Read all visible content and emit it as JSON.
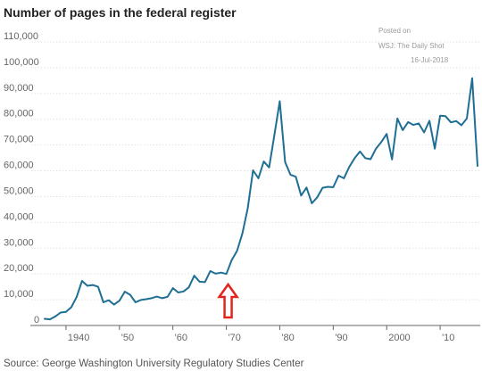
{
  "header": {
    "title": "Number of pages in the federal register"
  },
  "watermark": {
    "line1": "Posted on",
    "line2": "WSJ: The Daily Shot",
    "line3": "16-Jul-2018"
  },
  "footer": {
    "source": "Source: George Washington University Regulatory Studies Center"
  },
  "colors": {
    "line": "#1f6f94",
    "grid": "#e2e2e2",
    "axis": "#666666",
    "arrow": "#e3241b"
  },
  "annotation": {
    "type": "up-arrow",
    "x": 1970,
    "color": "#e3241b"
  },
  "chart_data": {
    "type": "line",
    "title": "Number of pages in the federal register",
    "xlabel": "",
    "ylabel": "",
    "x_tick_labels": [
      "1940",
      "'50",
      "'60",
      "'70",
      "'80",
      "'90",
      "2000",
      "'10"
    ],
    "x_ticks": [
      1940,
      1950,
      1960,
      1970,
      1980,
      1990,
      2000,
      2010
    ],
    "y_tick_labels": [
      "0",
      "10,000",
      "20,000",
      "30,000",
      "40,000",
      "50,000",
      "60,000",
      "70,000",
      "80,000",
      "90,000",
      "100,000",
      "110,000"
    ],
    "y_ticks": [
      0,
      10000,
      20000,
      30000,
      40000,
      50000,
      60000,
      70000,
      80000,
      90000,
      100000,
      110000
    ],
    "xlim": [
      1933.5,
      2017.5
    ],
    "ylim": [
      0,
      110000
    ],
    "grid": "horizontal",
    "series": [
      {
        "x": [
          1936,
          1937,
          1938,
          1939,
          1940,
          1941,
          1942,
          1943,
          1944,
          1945,
          1946,
          1947,
          1948,
          1949,
          1950,
          1951,
          1952,
          1953,
          1954,
          1955,
          1956,
          1957,
          1958,
          1959,
          1960,
          1961,
          1962,
          1963,
          1964,
          1965,
          1966,
          1967,
          1968,
          1969,
          1970,
          1971,
          1972,
          1973,
          1974,
          1975,
          1976,
          1977,
          1978,
          1979,
          1980,
          1981,
          1982,
          1983,
          1984,
          1985,
          1986,
          1987,
          1988,
          1989,
          1990,
          1991,
          1992,
          1993,
          1994,
          1995,
          1996,
          1997,
          1998,
          1999,
          2000,
          2001,
          2002,
          2003,
          2004,
          2005,
          2006,
          2007,
          2008,
          2009,
          2010,
          2011,
          2012,
          2013,
          2014,
          2015,
          2016,
          2017
        ],
        "values": [
          2600,
          2400,
          3500,
          5000,
          5300,
          7100,
          11100,
          17300,
          15400,
          15700,
          15000,
          9000,
          9800,
          8100,
          9600,
          13100,
          11900,
          9000,
          9900,
          10200,
          10600,
          11200,
          10600,
          11100,
          14500,
          12800,
          13200,
          14800,
          19300,
          17000,
          16800,
          21100,
          20100,
          20500,
          20000,
          25400,
          28900,
          35600,
          45400,
          60200,
          57100,
          63600,
          61300,
          74100,
          87000,
          63400,
          58500,
          57700,
          50400,
          53500,
          47400,
          49700,
          53400,
          53800,
          53600,
          58100,
          57100,
          61500,
          64900,
          67500,
          64900,
          64500,
          68600,
          71200,
          74300,
          64400,
          80300,
          75800,
          78900,
          77800,
          78400,
          74900,
          79400,
          68600,
          81400,
          81200,
          78800,
          79300,
          77700,
          80300,
          95900,
          61900
        ]
      }
    ]
  }
}
